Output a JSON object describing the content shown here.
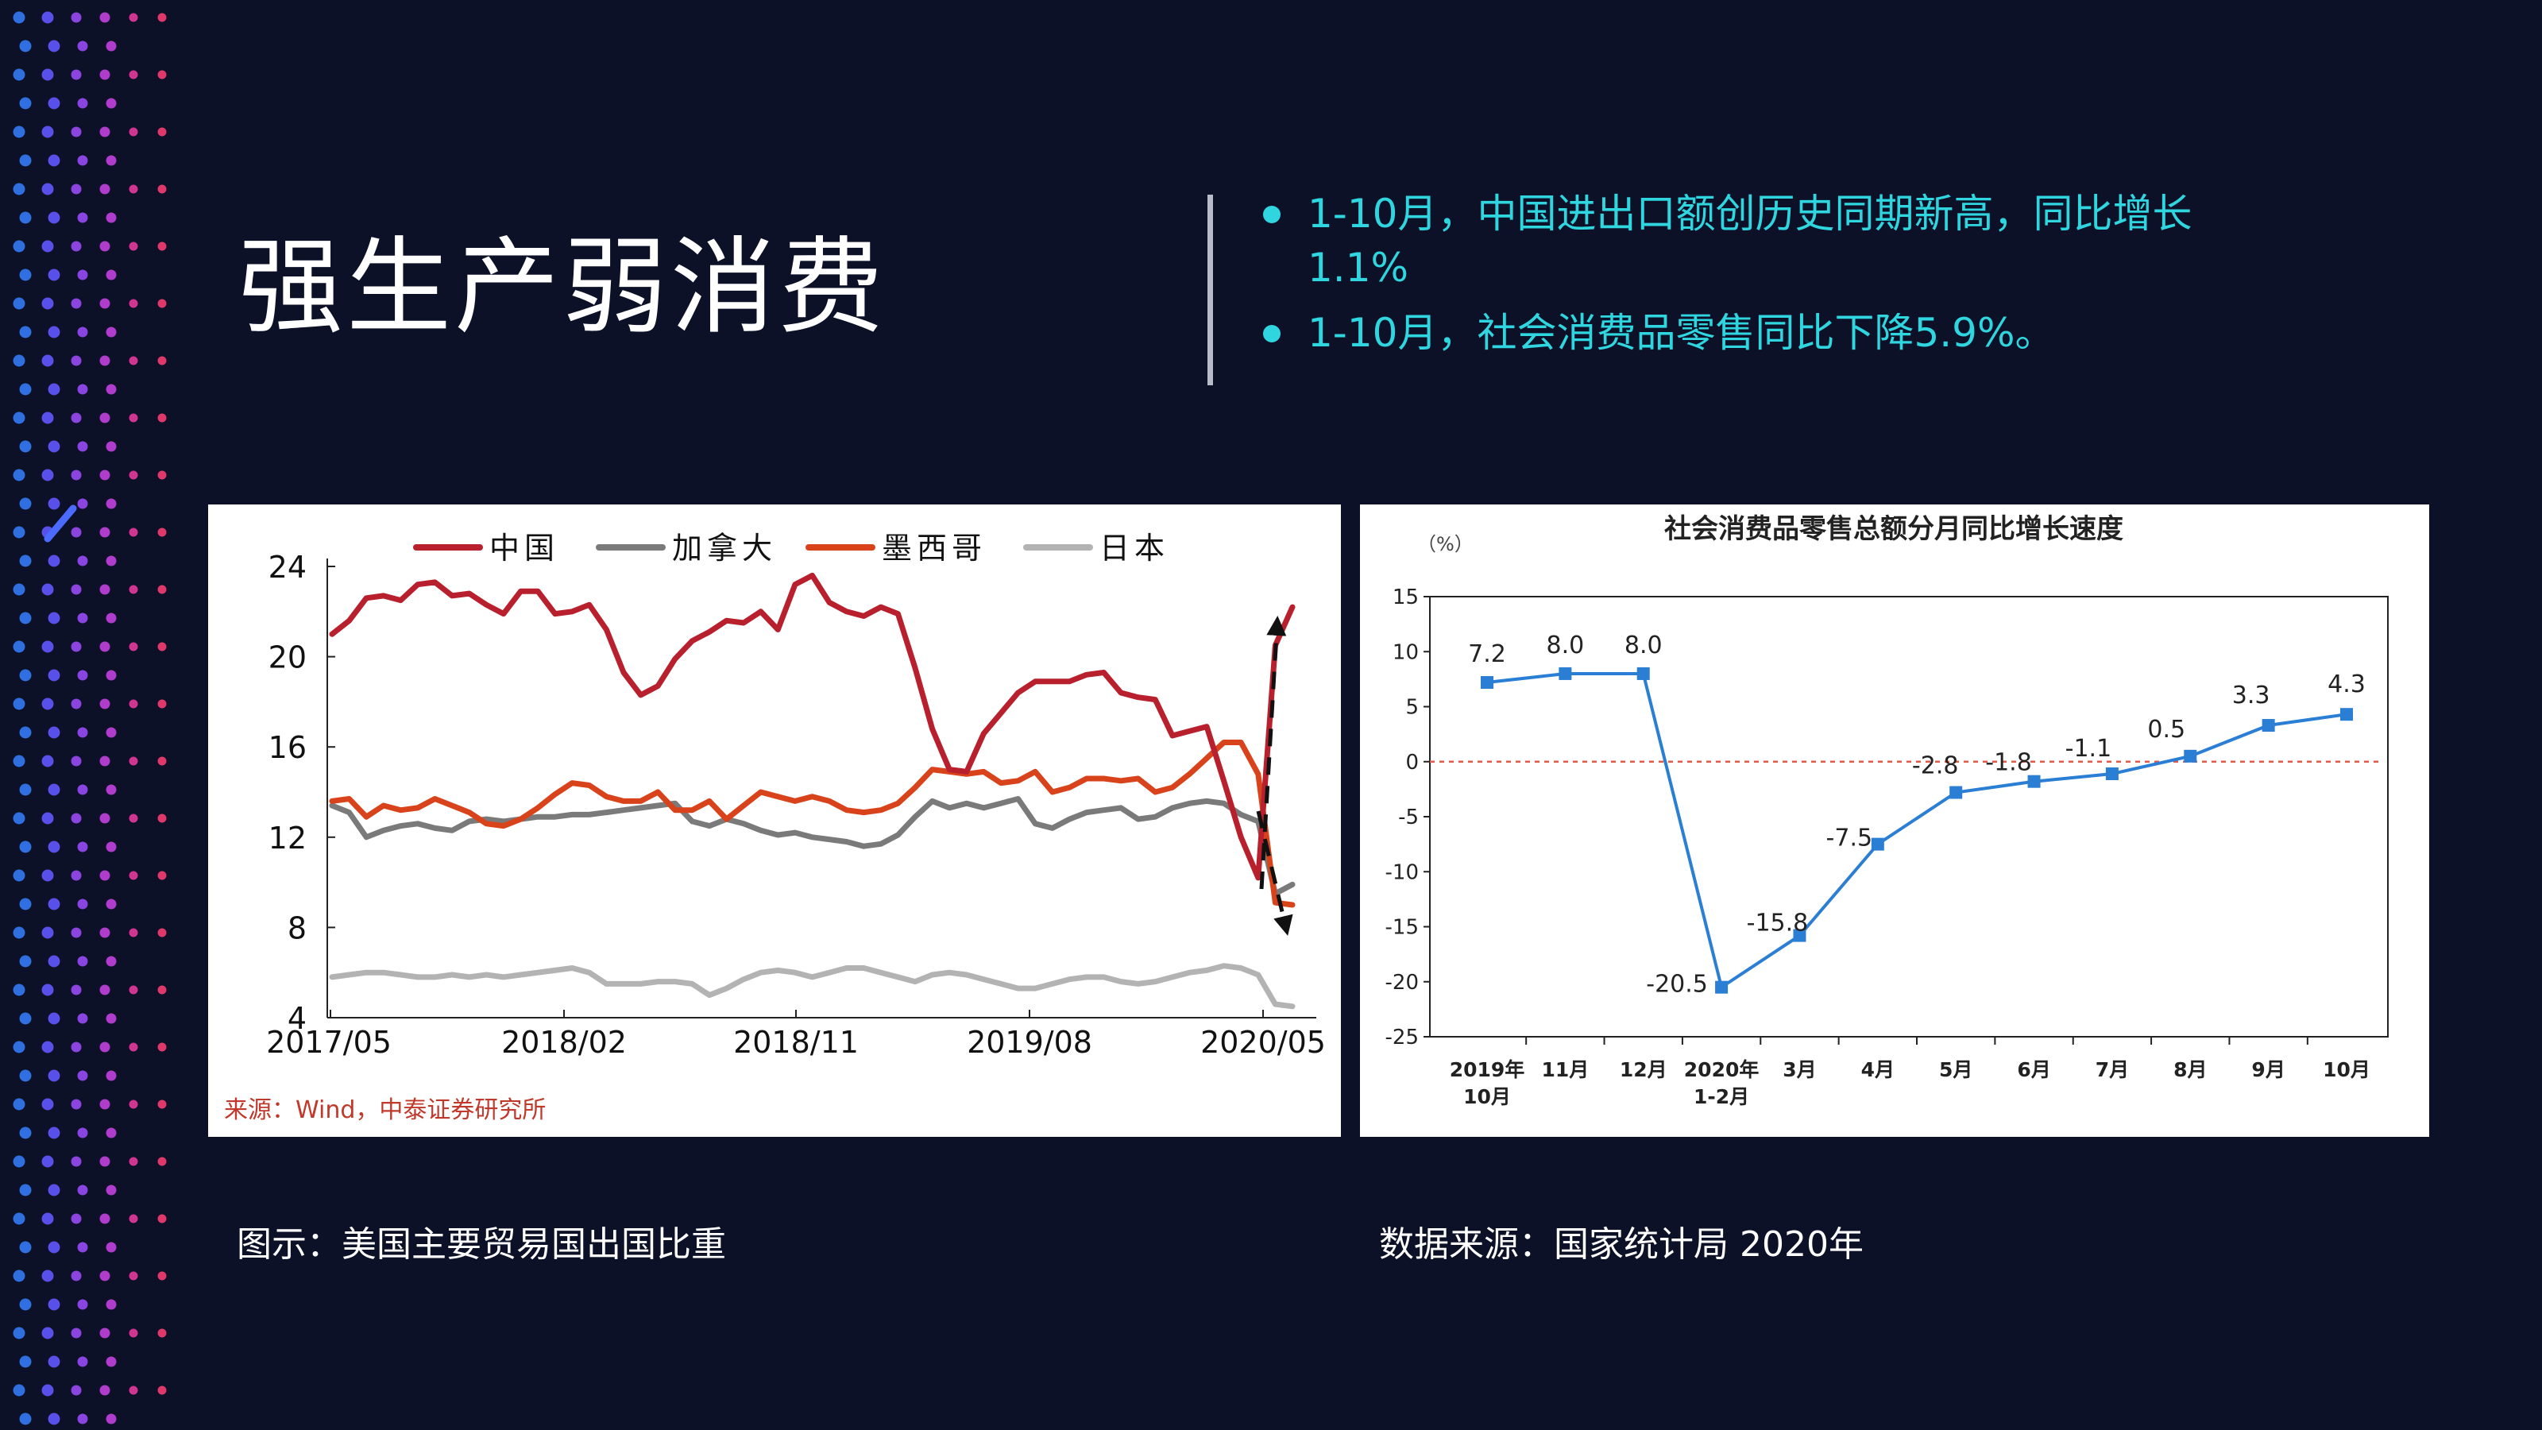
{
  "slide": {
    "title": "强生产弱消费",
    "bullets": [
      "1-10月，中国进出口额创历史同期新高，同比增长1.1%",
      "1-10月，社会消费品零售同比下降5.9%。"
    ],
    "caption_left": "图示：美国主要贸易国出国比重",
    "caption_right": "数据来源：国家统计局 2020年"
  },
  "colors": {
    "background": "#0c1128",
    "accent": "#2fd6df",
    "china": "#b8202d",
    "canada": "#7a7a7a",
    "mexico": "#d9431c",
    "japan": "#b3b3b3",
    "retail_line": "#2a7fd4"
  },
  "chart_data": [
    {
      "type": "line",
      "title": "",
      "source": "来源：Wind，中泰证券研究所",
      "ylim": [
        4,
        24
      ],
      "yticks": [
        4,
        8,
        12,
        16,
        20,
        24
      ],
      "xticks": [
        "2017/05",
        "2018/02",
        "2018/11",
        "2019/08",
        "2020/05"
      ],
      "legend_position": "top",
      "grid": false,
      "x_range": [
        "2017/05",
        "2020/06"
      ],
      "series": [
        {
          "name": "中国",
          "color": "#b8202d",
          "values": [
            21.0,
            21.6,
            22.6,
            22.7,
            22.5,
            23.2,
            23.3,
            22.7,
            22.8,
            22.3,
            21.9,
            22.9,
            22.9,
            21.9,
            22.0,
            22.3,
            21.2,
            19.3,
            18.3,
            18.7,
            19.9,
            20.7,
            21.1,
            21.6,
            21.5,
            22.0,
            21.2,
            23.2,
            23.6,
            22.4,
            22.0,
            21.8,
            22.2,
            21.9,
            19.5,
            16.8,
            15.0,
            14.9,
            16.6,
            17.5,
            18.4,
            18.9,
            18.9,
            18.9,
            19.2,
            19.3,
            18.4,
            18.2,
            18.1,
            16.5,
            16.7,
            16.9,
            14.5,
            12.0,
            10.2,
            20.5,
            22.2
          ]
        },
        {
          "name": "加拿大",
          "color": "#7a7a7a",
          "values": [
            13.4,
            13.1,
            12.0,
            12.3,
            12.5,
            12.6,
            12.4,
            12.3,
            12.7,
            12.8,
            12.7,
            12.8,
            12.9,
            12.9,
            13.0,
            13.0,
            13.1,
            13.2,
            13.3,
            13.4,
            13.5,
            12.7,
            12.5,
            12.8,
            12.6,
            12.3,
            12.1,
            12.2,
            12.0,
            11.9,
            11.8,
            11.6,
            11.7,
            12.1,
            12.9,
            13.6,
            13.3,
            13.5,
            13.3,
            13.5,
            13.7,
            12.6,
            12.4,
            12.8,
            13.1,
            13.2,
            13.3,
            12.8,
            12.9,
            13.3,
            13.5,
            13.6,
            13.5,
            13.0,
            12.7,
            9.5,
            9.9
          ]
        },
        {
          "name": "墨西哥",
          "color": "#d9431c",
          "values": [
            13.6,
            13.7,
            12.9,
            13.4,
            13.2,
            13.3,
            13.7,
            13.4,
            13.1,
            12.6,
            12.5,
            12.8,
            13.3,
            13.9,
            14.4,
            14.3,
            13.8,
            13.6,
            13.6,
            14.0,
            13.2,
            13.2,
            13.6,
            12.8,
            13.4,
            14.0,
            13.8,
            13.6,
            13.8,
            13.6,
            13.2,
            13.1,
            13.2,
            13.5,
            14.2,
            15.0,
            14.9,
            14.8,
            14.9,
            14.4,
            14.5,
            14.9,
            14.0,
            14.2,
            14.6,
            14.6,
            14.5,
            14.6,
            14.0,
            14.2,
            14.8,
            15.5,
            16.2,
            16.2,
            14.8,
            9.1,
            9.0
          ]
        },
        {
          "name": "日本",
          "color": "#b3b3b3",
          "values": [
            5.8,
            5.9,
            6.0,
            6.0,
            5.9,
            5.8,
            5.8,
            5.9,
            5.8,
            5.9,
            5.8,
            5.9,
            6.0,
            6.1,
            6.2,
            6.0,
            5.5,
            5.5,
            5.5,
            5.6,
            5.6,
            5.5,
            5.0,
            5.3,
            5.7,
            6.0,
            6.1,
            6.0,
            5.8,
            6.0,
            6.2,
            6.2,
            6.0,
            5.8,
            5.6,
            5.9,
            6.0,
            5.9,
            5.7,
            5.5,
            5.3,
            5.3,
            5.5,
            5.7,
            5.8,
            5.8,
            5.6,
            5.5,
            5.6,
            5.8,
            6.0,
            6.1,
            6.3,
            6.2,
            5.9,
            4.6,
            4.5
          ]
        }
      ]
    },
    {
      "type": "line",
      "title": "社会消费品零售总额分月同比增长速度",
      "ylabel": "（%）",
      "ylim": [
        -25,
        15
      ],
      "yticks": [
        15,
        10,
        5,
        0,
        -5,
        -10,
        -15,
        -20,
        -25
      ],
      "categories": [
        "2019年10月",
        "11月",
        "12月",
        "2020年1-2月",
        "3月",
        "4月",
        "5月",
        "6月",
        "7月",
        "8月",
        "9月",
        "10月"
      ],
      "series": [
        {
          "name": "",
          "color": "#2a7fd4",
          "values": [
            7.2,
            8.0,
            8.0,
            -20.5,
            -15.8,
            -7.5,
            -2.8,
            -1.8,
            -1.1,
            0.5,
            3.3,
            4.3
          ]
        }
      ],
      "reference_line": {
        "value": 0,
        "color": "#e05a4a",
        "style": "dashed"
      },
      "data_labels": true,
      "legend": "none",
      "grid": false
    }
  ]
}
